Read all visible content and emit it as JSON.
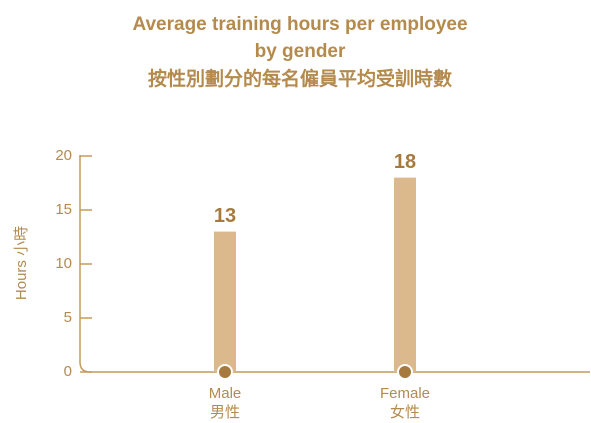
{
  "chart_data": {
    "type": "bar",
    "title": [
      "Average training hours per employee",
      "by gender",
      "按性別劃分的每名僱員平均受訓時數"
    ],
    "y_label": "Hours 小時",
    "categories": [
      [
        "Male",
        "男性"
      ],
      [
        "Female",
        "女性"
      ]
    ],
    "values": [
      13,
      18
    ],
    "color": "#dcb88d",
    "ylim": [
      0,
      20
    ],
    "yticks": [
      0,
      5,
      10,
      15,
      20
    ],
    "grid": false
  }
}
